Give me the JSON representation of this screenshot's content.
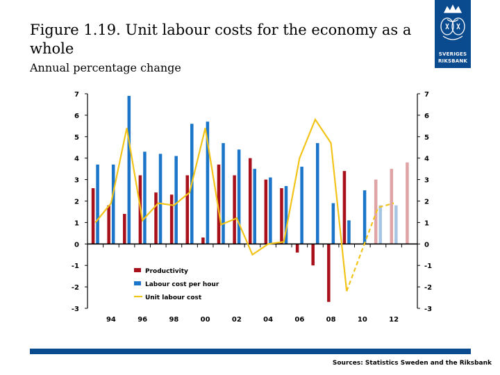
{
  "header": {
    "title": "Figure 1.19. Unit labour costs for the economy as a whole",
    "subtitle": "Annual percentage change"
  },
  "logo": {
    "line1": "SVERIGES",
    "line2": "RIKSBANK",
    "icon": "riksbank-crown-emblem-icon"
  },
  "footer": {
    "source": "Sources: Statistics Sweden and the Riksbank"
  },
  "colors": {
    "productivity": "#a8111b",
    "labour": "#1b75c8",
    "ulc": "#f2c318",
    "productivity_forecast": "#e0a3a6",
    "labour_forecast": "#a7c5e3",
    "brand": "#0a4a8f"
  },
  "chart_data": {
    "type": "bar",
    "xlabel": "",
    "ylabel": "",
    "ylim": [
      -3,
      7
    ],
    "yticks": [
      -3,
      -2,
      -1,
      0,
      1,
      2,
      3,
      4,
      5,
      6,
      7
    ],
    "xtick_labels": [
      "94",
      "96",
      "98",
      "00",
      "02",
      "04",
      "06",
      "08",
      "10",
      "12"
    ],
    "categories": [
      "1993",
      "1994",
      "1995",
      "1996",
      "1997",
      "1998",
      "1999",
      "2000",
      "2001",
      "2002",
      "2003",
      "2004",
      "2005",
      "2006",
      "2007",
      "2008",
      "2009",
      "2010",
      "2011",
      "2012",
      "2013"
    ],
    "forecast_start": "2011",
    "legend_position": "lower-left",
    "series": [
      {
        "name": "Productivity",
        "kind": "bar",
        "values": [
          2.6,
          1.8,
          1.4,
          3.2,
          2.4,
          2.3,
          3.2,
          0.3,
          3.7,
          3.2,
          4.0,
          3.0,
          2.6,
          -0.4,
          -1.0,
          -2.7,
          3.4,
          0.0,
          3.0,
          3.5,
          3.8
        ]
      },
      {
        "name": "Labour cost per hour",
        "kind": "bar",
        "values": [
          3.7,
          3.7,
          6.9,
          4.3,
          4.2,
          4.1,
          5.6,
          5.7,
          4.7,
          4.4,
          3.5,
          3.1,
          2.7,
          3.6,
          4.7,
          1.9,
          1.1,
          2.5,
          1.8,
          1.8,
          0.0
        ]
      },
      {
        "name": "Unit labour cost",
        "kind": "line",
        "values": [
          1.0,
          1.9,
          5.4,
          1.1,
          1.9,
          1.8,
          2.4,
          5.4,
          0.9,
          1.2,
          -0.5,
          0.0,
          0.1,
          4.0,
          5.8,
          4.7,
          -2.2,
          null,
          1.7,
          1.9,
          null
        ]
      }
    ]
  }
}
